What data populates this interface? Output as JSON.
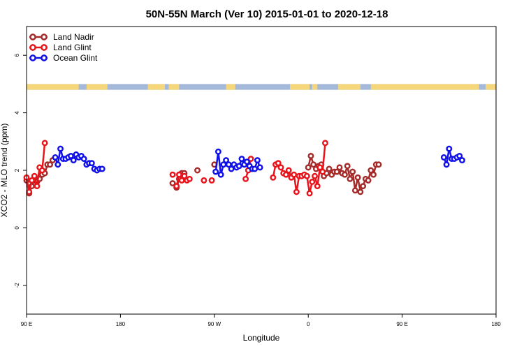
{
  "chart_data": {
    "type": "line",
    "title": "50N-55N March (Ver 10)   2015-01-01 to 2020-12-18",
    "xlabel": "Longitude",
    "ylabel": "XCO2 - MLO trend (ppm)",
    "xlim": [
      90,
      450
    ],
    "ylim": [
      -3,
      7
    ],
    "x_ticks": [
      {
        "value": 90,
        "label": "90 E"
      },
      {
        "value": 162,
        "label": "180"
      },
      {
        "value": 234,
        "label": "90 W"
      },
      {
        "value": 306,
        "label": "0"
      },
      {
        "value": 378,
        "label": "90 E"
      },
      {
        "value": 450,
        "label": "180"
      }
    ],
    "y_ticks": [
      -2,
      0,
      2,
      4,
      6
    ],
    "land_band": {
      "color_land": "#f5d67a",
      "color_ocean": "#a4b9d9",
      "y_range": [
        4.8,
        5.0
      ]
    },
    "legend": {
      "position": "top-left"
    },
    "series": [
      {
        "name": "Land Nadir",
        "color": "#a52a2a",
        "segments": [
          [
            [
              90,
              1.65
            ],
            [
              92,
              1.2
            ],
            [
              94,
              1.45
            ],
            [
              96,
              1.65
            ],
            [
              98,
              1.6
            ],
            [
              100,
              1.7
            ],
            [
              102,
              1.85
            ],
            [
              104,
              1.9
            ],
            [
              106,
              2.2
            ],
            [
              108,
              2.2
            ],
            [
              110,
              2.35
            ]
          ],
          [
            [
              202,
              1.55
            ],
            [
              205,
              1.4
            ],
            [
              207,
              1.7
            ],
            [
              209,
              1.9
            ],
            [
              211,
              1.9
            ]
          ],
          [
            [
              221,
              2.0
            ]
          ],
          [
            [
              234,
              2.2
            ]
          ],
          [
            [
              306,
              2.1
            ],
            [
              308,
              2.5
            ],
            [
              310,
              2.2
            ],
            [
              312,
              2.05
            ],
            [
              314,
              2.15
            ],
            [
              316,
              2.2
            ],
            [
              318,
              1.8
            ],
            [
              320,
              1.9
            ],
            [
              322,
              2.05
            ],
            [
              324,
              1.85
            ],
            [
              326,
              1.95
            ],
            [
              328,
              1.95
            ],
            [
              330,
              2.1
            ],
            [
              332,
              1.9
            ],
            [
              334,
              1.85
            ],
            [
              336,
              2.15
            ],
            [
              338,
              1.7
            ],
            [
              340,
              1.95
            ],
            [
              342,
              1.3
            ],
            [
              344,
              1.75
            ],
            [
              346,
              1.25
            ],
            [
              348,
              1.45
            ],
            [
              350,
              1.7
            ],
            [
              352,
              1.65
            ],
            [
              354,
              2.0
            ],
            [
              356,
              1.85
            ],
            [
              358,
              2.2
            ],
            [
              360,
              2.2
            ]
          ]
        ]
      },
      {
        "name": "Land Glint",
        "color": "#e8141b",
        "segments": [
          [
            [
              90,
              1.75
            ],
            [
              92,
              1.25
            ],
            [
              94,
              1.65
            ],
            [
              96,
              1.8
            ],
            [
              98,
              1.45
            ],
            [
              100,
              2.1
            ],
            [
              102,
              2.0
            ],
            [
              104,
              2.95
            ]
          ],
          [
            [
              202,
              1.85
            ]
          ],
          [
            [
              205,
              1.45
            ],
            [
              207,
              1.85
            ],
            [
              209,
              1.65
            ],
            [
              211,
              1.8
            ],
            [
              213,
              1.65
            ],
            [
              215,
              1.7
            ]
          ],
          [
            [
              226,
              1.65
            ]
          ],
          [
            [
              232,
              1.65
            ]
          ],
          [
            [
              258,
              1.7
            ],
            [
              260,
              2.0
            ],
            [
              262,
              2.4
            ]
          ],
          [
            [
              279,
              1.75
            ],
            [
              281,
              2.2
            ],
            [
              283,
              2.25
            ],
            [
              285,
              2.1
            ],
            [
              287,
              1.9
            ],
            [
              289,
              1.85
            ],
            [
              291,
              2.0
            ],
            [
              293,
              1.75
            ],
            [
              295,
              1.85
            ],
            [
              297,
              1.25
            ],
            [
              299,
              1.8
            ],
            [
              301,
              1.8
            ],
            [
              303,
              1.85
            ],
            [
              305,
              1.8
            ],
            [
              307,
              1.2
            ],
            [
              309,
              1.6
            ],
            [
              311,
              1.8
            ],
            [
              313,
              1.45
            ],
            [
              315,
              2.1
            ],
            [
              317,
              1.95
            ],
            [
              319,
              2.95
            ]
          ]
        ]
      },
      {
        "name": "Ocean Glint",
        "color": "#1010e8",
        "segments": [
          [
            [
              112,
              2.45
            ],
            [
              114,
              2.2
            ],
            [
              116,
              2.75
            ],
            [
              118,
              2.4
            ],
            [
              120,
              2.4
            ],
            [
              122,
              2.45
            ],
            [
              124,
              2.5
            ],
            [
              126,
              2.35
            ],
            [
              128,
              2.55
            ],
            [
              130,
              2.45
            ],
            [
              132,
              2.5
            ],
            [
              134,
              2.4
            ],
            [
              136,
              2.2
            ],
            [
              138,
              2.25
            ],
            [
              140,
              2.25
            ],
            [
              142,
              2.05
            ],
            [
              144,
              2.0
            ],
            [
              146,
              2.05
            ],
            [
              148,
              2.05
            ]
          ],
          [
            [
              235,
              1.95
            ],
            [
              237,
              2.65
            ],
            [
              239,
              1.85
            ],
            [
              241,
              2.2
            ],
            [
              243,
              2.35
            ],
            [
              245,
              2.2
            ],
            [
              247,
              2.05
            ],
            [
              249,
              2.2
            ],
            [
              251,
              2.1
            ],
            [
              253,
              2.15
            ],
            [
              255,
              2.4
            ],
            [
              257,
              2.2
            ],
            [
              259,
              2.3
            ],
            [
              261,
              2.15
            ],
            [
              263,
              2.05
            ],
            [
              265,
              2.05
            ],
            [
              267,
              2.35
            ],
            [
              269,
              2.1
            ]
          ],
          [
            [
              410,
              2.45
            ],
            [
              412,
              2.2
            ],
            [
              414,
              2.75
            ],
            [
              416,
              2.4
            ],
            [
              418,
              2.4
            ],
            [
              420,
              2.45
            ],
            [
              422,
              2.5
            ],
            [
              424,
              2.35
            ]
          ]
        ]
      }
    ]
  }
}
